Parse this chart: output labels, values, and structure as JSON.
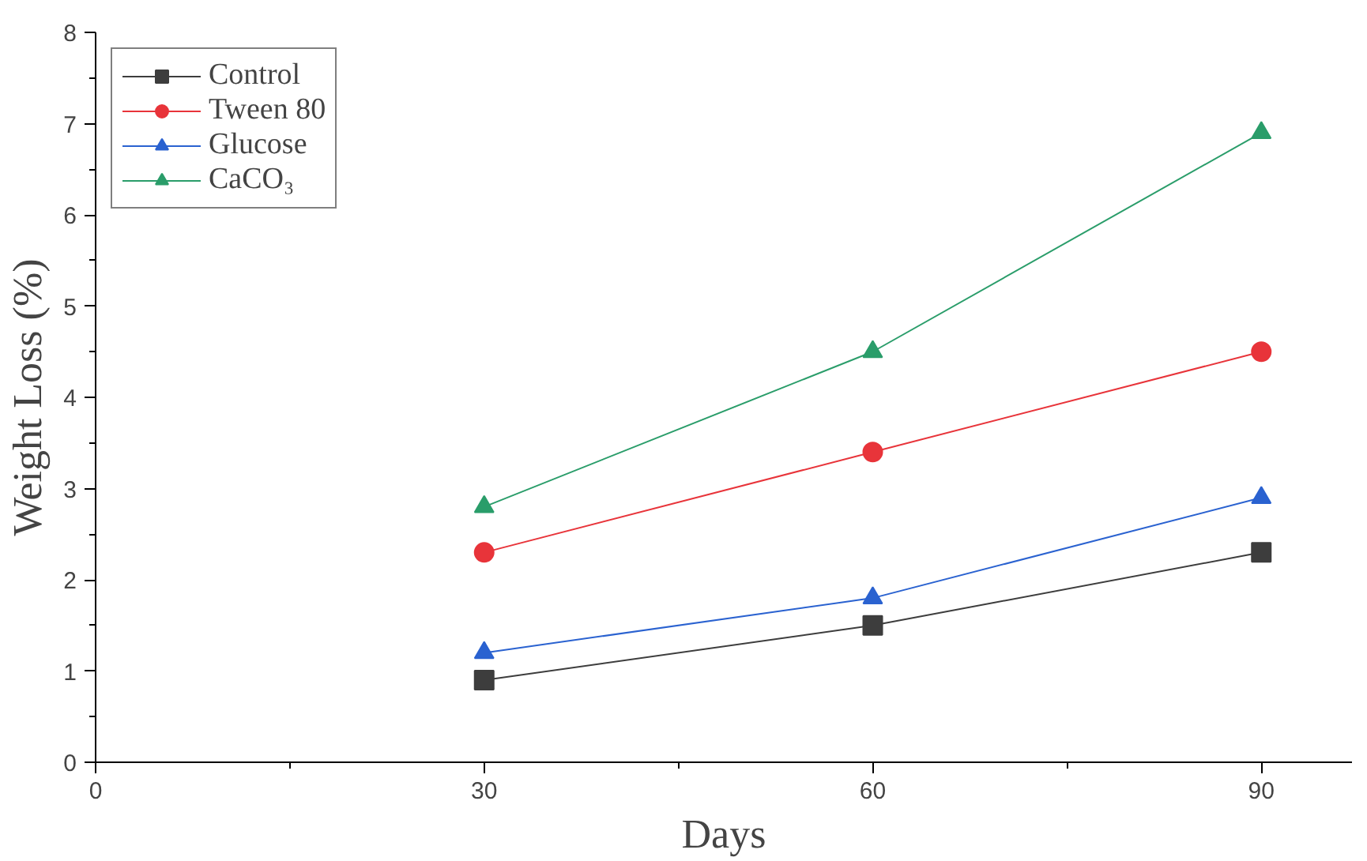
{
  "chart_data": {
    "type": "line",
    "xlabel": "Days",
    "ylabel": "Weight Loss (%)",
    "x": [
      30,
      60,
      90
    ],
    "series": [
      {
        "name": "Control",
        "color": "#3d3d3d",
        "marker": "square",
        "values": [
          0.9,
          1.5,
          2.3
        ]
      },
      {
        "name": "Tween 80",
        "color": "#e8343a",
        "marker": "circle",
        "values": [
          2.3,
          3.4,
          4.5
        ]
      },
      {
        "name": "Glucose",
        "color": "#2a62d0",
        "marker": "triangle",
        "values": [
          1.2,
          1.8,
          2.9
        ]
      },
      {
        "name": "CaCO₃",
        "color": "#2a9d6a",
        "marker": "triangle",
        "values": [
          2.8,
          4.5,
          6.9
        ]
      }
    ],
    "xlim": [
      0,
      97
    ],
    "ylim": [
      0,
      8
    ],
    "xticks": [
      0,
      30,
      60,
      90
    ],
    "yticks": [
      0,
      1,
      2,
      3,
      4,
      5,
      6,
      7,
      8
    ],
    "grid": false,
    "legend": "top left",
    "line_style": "solid"
  }
}
